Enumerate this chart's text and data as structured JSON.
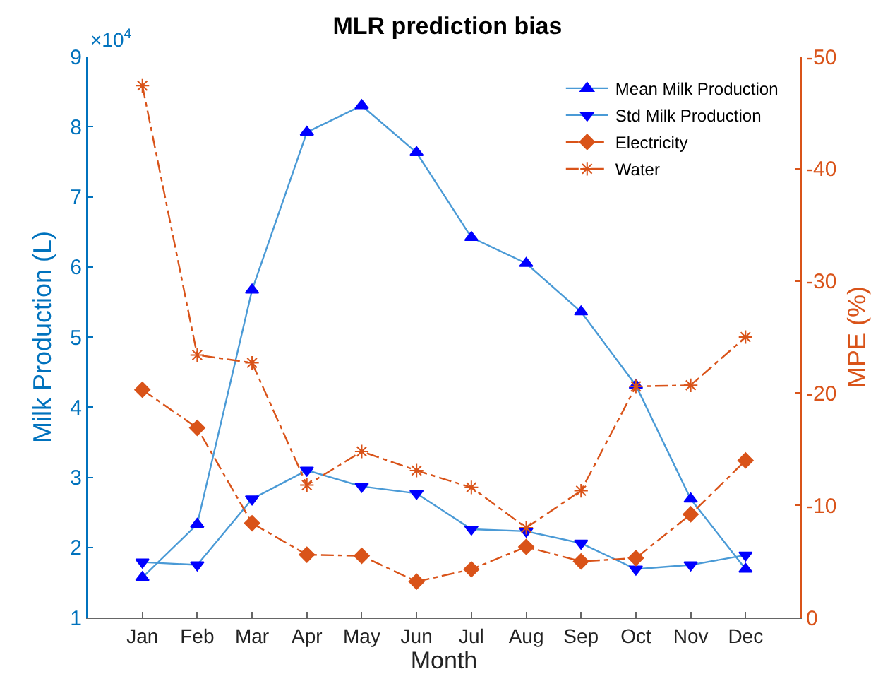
{
  "chart_data": {
    "type": "line",
    "title": "MLR prediction bias",
    "xlabel": "Month",
    "ylabel": "Milk Production (L)",
    "y2label": "MPE (%)",
    "categories": [
      "Jan",
      "Feb",
      "Mar",
      "Apr",
      "May",
      "Jun",
      "Jul",
      "Aug",
      "Sep",
      "Oct",
      "Nov",
      "Dec"
    ],
    "series": [
      {
        "name": "Mean Milk Production",
        "color": "#4a9ad6",
        "marker": "triangle",
        "line_style": "solid",
        "values": [
          1.57,
          2.33,
          5.67,
          7.92,
          8.3,
          7.63,
          6.42,
          6.05,
          5.36,
          4.31,
          2.69,
          1.69
        ]
      },
      {
        "name": "Std Milk Production",
        "color": "#4a9ad6",
        "marker": "triangle-down",
        "line_style": "solid",
        "values": [
          1.79,
          1.75,
          2.69,
          3.1,
          2.87,
          2.77,
          2.26,
          2.23,
          2.06,
          1.69,
          1.75,
          1.89
        ]
      },
      {
        "name": "Electricity",
        "color": "#d95319",
        "marker": "diamond",
        "line_style": "dashdot",
        "axis": "y2",
        "values": [
          -20.3,
          -16.9,
          -8.4,
          -5.6,
          -5.5,
          -3.2,
          -4.3,
          -6.3,
          -5,
          -5.3,
          -9.2,
          -14
        ]
      },
      {
        "name": "Water",
        "color": "#d95319",
        "marker": "cross",
        "line_style": "dashdot",
        "axis": "y2",
        "values": [
          -47.4,
          -23.4,
          -22.7,
          -11.8,
          -14.8,
          -13.1,
          -11.6,
          -8,
          -11.3,
          -20.6,
          -20.7,
          -25
        ]
      }
    ],
    "ylim": [
      1,
      9
    ],
    "yticks": [
      1,
      2,
      3,
      4,
      5,
      6,
      7,
      8,
      9
    ],
    "y2lim": [
      0,
      -50
    ],
    "y2ticks": [
      0,
      -10,
      -20,
      -30,
      -40,
      -50
    ],
    "annotations": [
      "×10$^{4}$"
    ],
    "grid": false,
    "legend": "top right"
  }
}
